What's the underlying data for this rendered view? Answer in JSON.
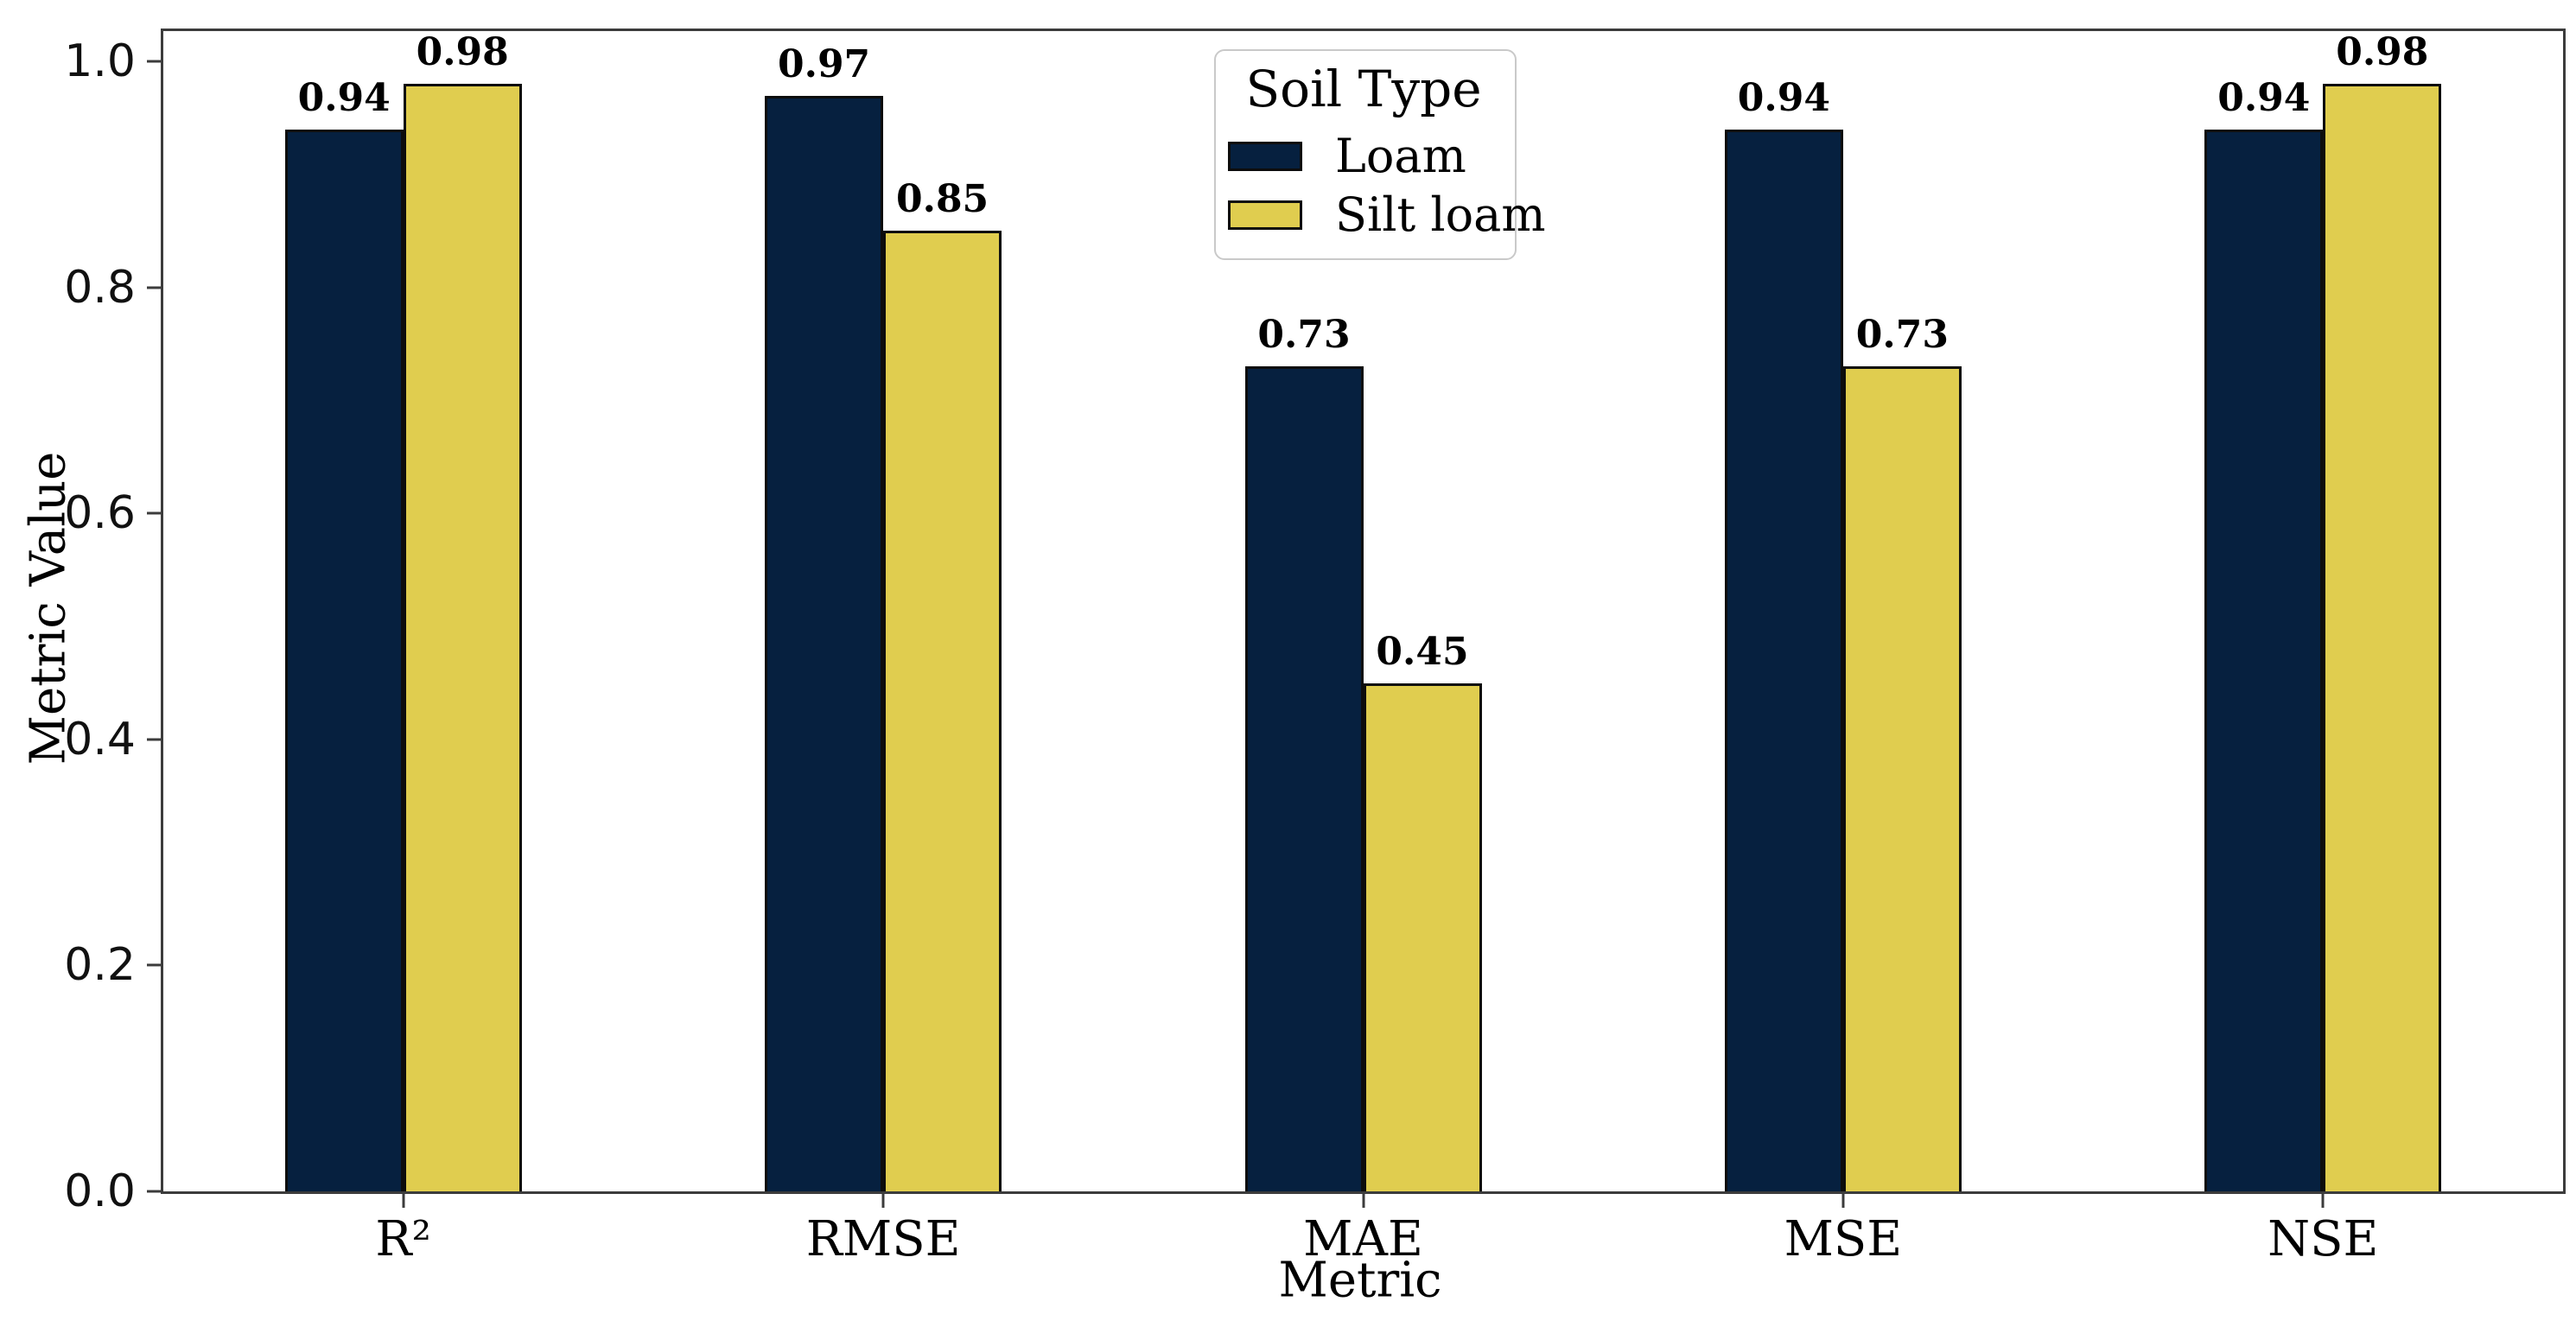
{
  "chart_data": {
    "type": "bar",
    "categories": [
      "R²",
      "RMSE",
      "MAE",
      "MSE",
      "NSE"
    ],
    "series": [
      {
        "name": "Loam",
        "color": "#06203f",
        "values": [
          0.94,
          0.97,
          0.73,
          0.94,
          0.94
        ]
      },
      {
        "name": "Silt loam",
        "color": "#e0cd4f",
        "values": [
          0.98,
          0.85,
          0.45,
          0.73,
          0.98
        ]
      }
    ],
    "bar_labels": [
      "0.94",
      "0.98",
      "0.97",
      "0.85",
      "0.73",
      "0.45",
      "0.94",
      "0.73",
      "0.94",
      "0.98"
    ],
    "xlabel": "Metric",
    "ylabel": "Metric Value",
    "yticks": [
      "0.0",
      "0.2",
      "0.4",
      "0.6",
      "0.8",
      "1.0"
    ],
    "ylim": [
      0,
      1.027
    ],
    "grid": false,
    "legend_title": "Soil Type",
    "legend_position": "upper center",
    "bar_edge_color": "#0d0d0d",
    "spine_color": "#3c3c3c"
  }
}
